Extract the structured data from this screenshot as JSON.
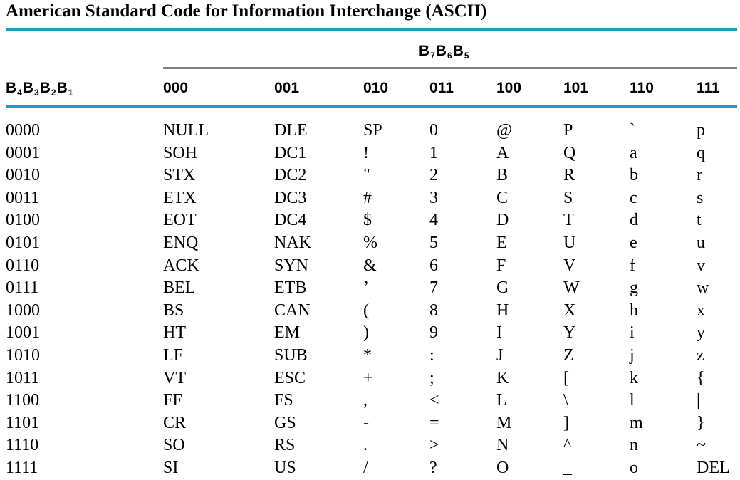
{
  "title": "American Standard Code for Information Interchange (ASCII)",
  "group_header": {
    "b7": "B",
    "s7": "7",
    "b6": "B",
    "s6": "6",
    "b5": "B",
    "s5": "5"
  },
  "row_header": {
    "b4": "B",
    "s4": "4",
    "b3": "B",
    "s3": "3",
    "b2": "B",
    "s2": "2",
    "b1": "B",
    "s1": "1"
  },
  "columns": [
    "000",
    "001",
    "010",
    "011",
    "100",
    "101",
    "110",
    "111"
  ],
  "rows": [
    [
      "0000",
      "NULL",
      "DLE",
      "SP",
      "0",
      "@",
      "P",
      "`",
      "p"
    ],
    [
      "0001",
      "SOH",
      "DC1",
      "!",
      "1",
      "A",
      "Q",
      "a",
      "q"
    ],
    [
      "0010",
      "STX",
      "DC2",
      "\"",
      "2",
      "B",
      "R",
      "b",
      "r"
    ],
    [
      "0011",
      "ETX",
      "DC3",
      "#",
      "3",
      "C",
      "S",
      "c",
      "s"
    ],
    [
      "0100",
      "EOT",
      "DC4",
      "$",
      "4",
      "D",
      "T",
      "d",
      "t"
    ],
    [
      "0101",
      "ENQ",
      "NAK",
      "%",
      "5",
      "E",
      "U",
      "e",
      "u"
    ],
    [
      "0110",
      "ACK",
      "SYN",
      "&",
      "6",
      "F",
      "V",
      "f",
      "v"
    ],
    [
      "0111",
      "BEL",
      "ETB",
      "’",
      "7",
      "G",
      "W",
      "g",
      "w"
    ],
    [
      "1000",
      "BS",
      "CAN",
      "(",
      "8",
      "H",
      "X",
      "h",
      "x"
    ],
    [
      "1001",
      "HT",
      "EM",
      ")",
      "9",
      "I",
      "Y",
      "i",
      "y"
    ],
    [
      "1010",
      "LF",
      "SUB",
      "*",
      ":",
      "J",
      "Z",
      "j",
      "z"
    ],
    [
      "1011",
      "VT",
      "ESC",
      "+",
      ";",
      "K",
      "[",
      "k",
      "{"
    ],
    [
      "1100",
      "FF",
      "FS",
      ",",
      "<",
      "L",
      "\\",
      "l",
      "|"
    ],
    [
      "1101",
      "CR",
      "GS",
      "-",
      "=",
      "M",
      "]",
      "m",
      "}"
    ],
    [
      "1110",
      "SO",
      "RS",
      ".",
      ">",
      "N",
      "^",
      "n",
      "~"
    ],
    [
      "1111",
      "SI",
      "US",
      "/",
      "?",
      "O",
      "_",
      "o",
      "DEL"
    ]
  ]
}
